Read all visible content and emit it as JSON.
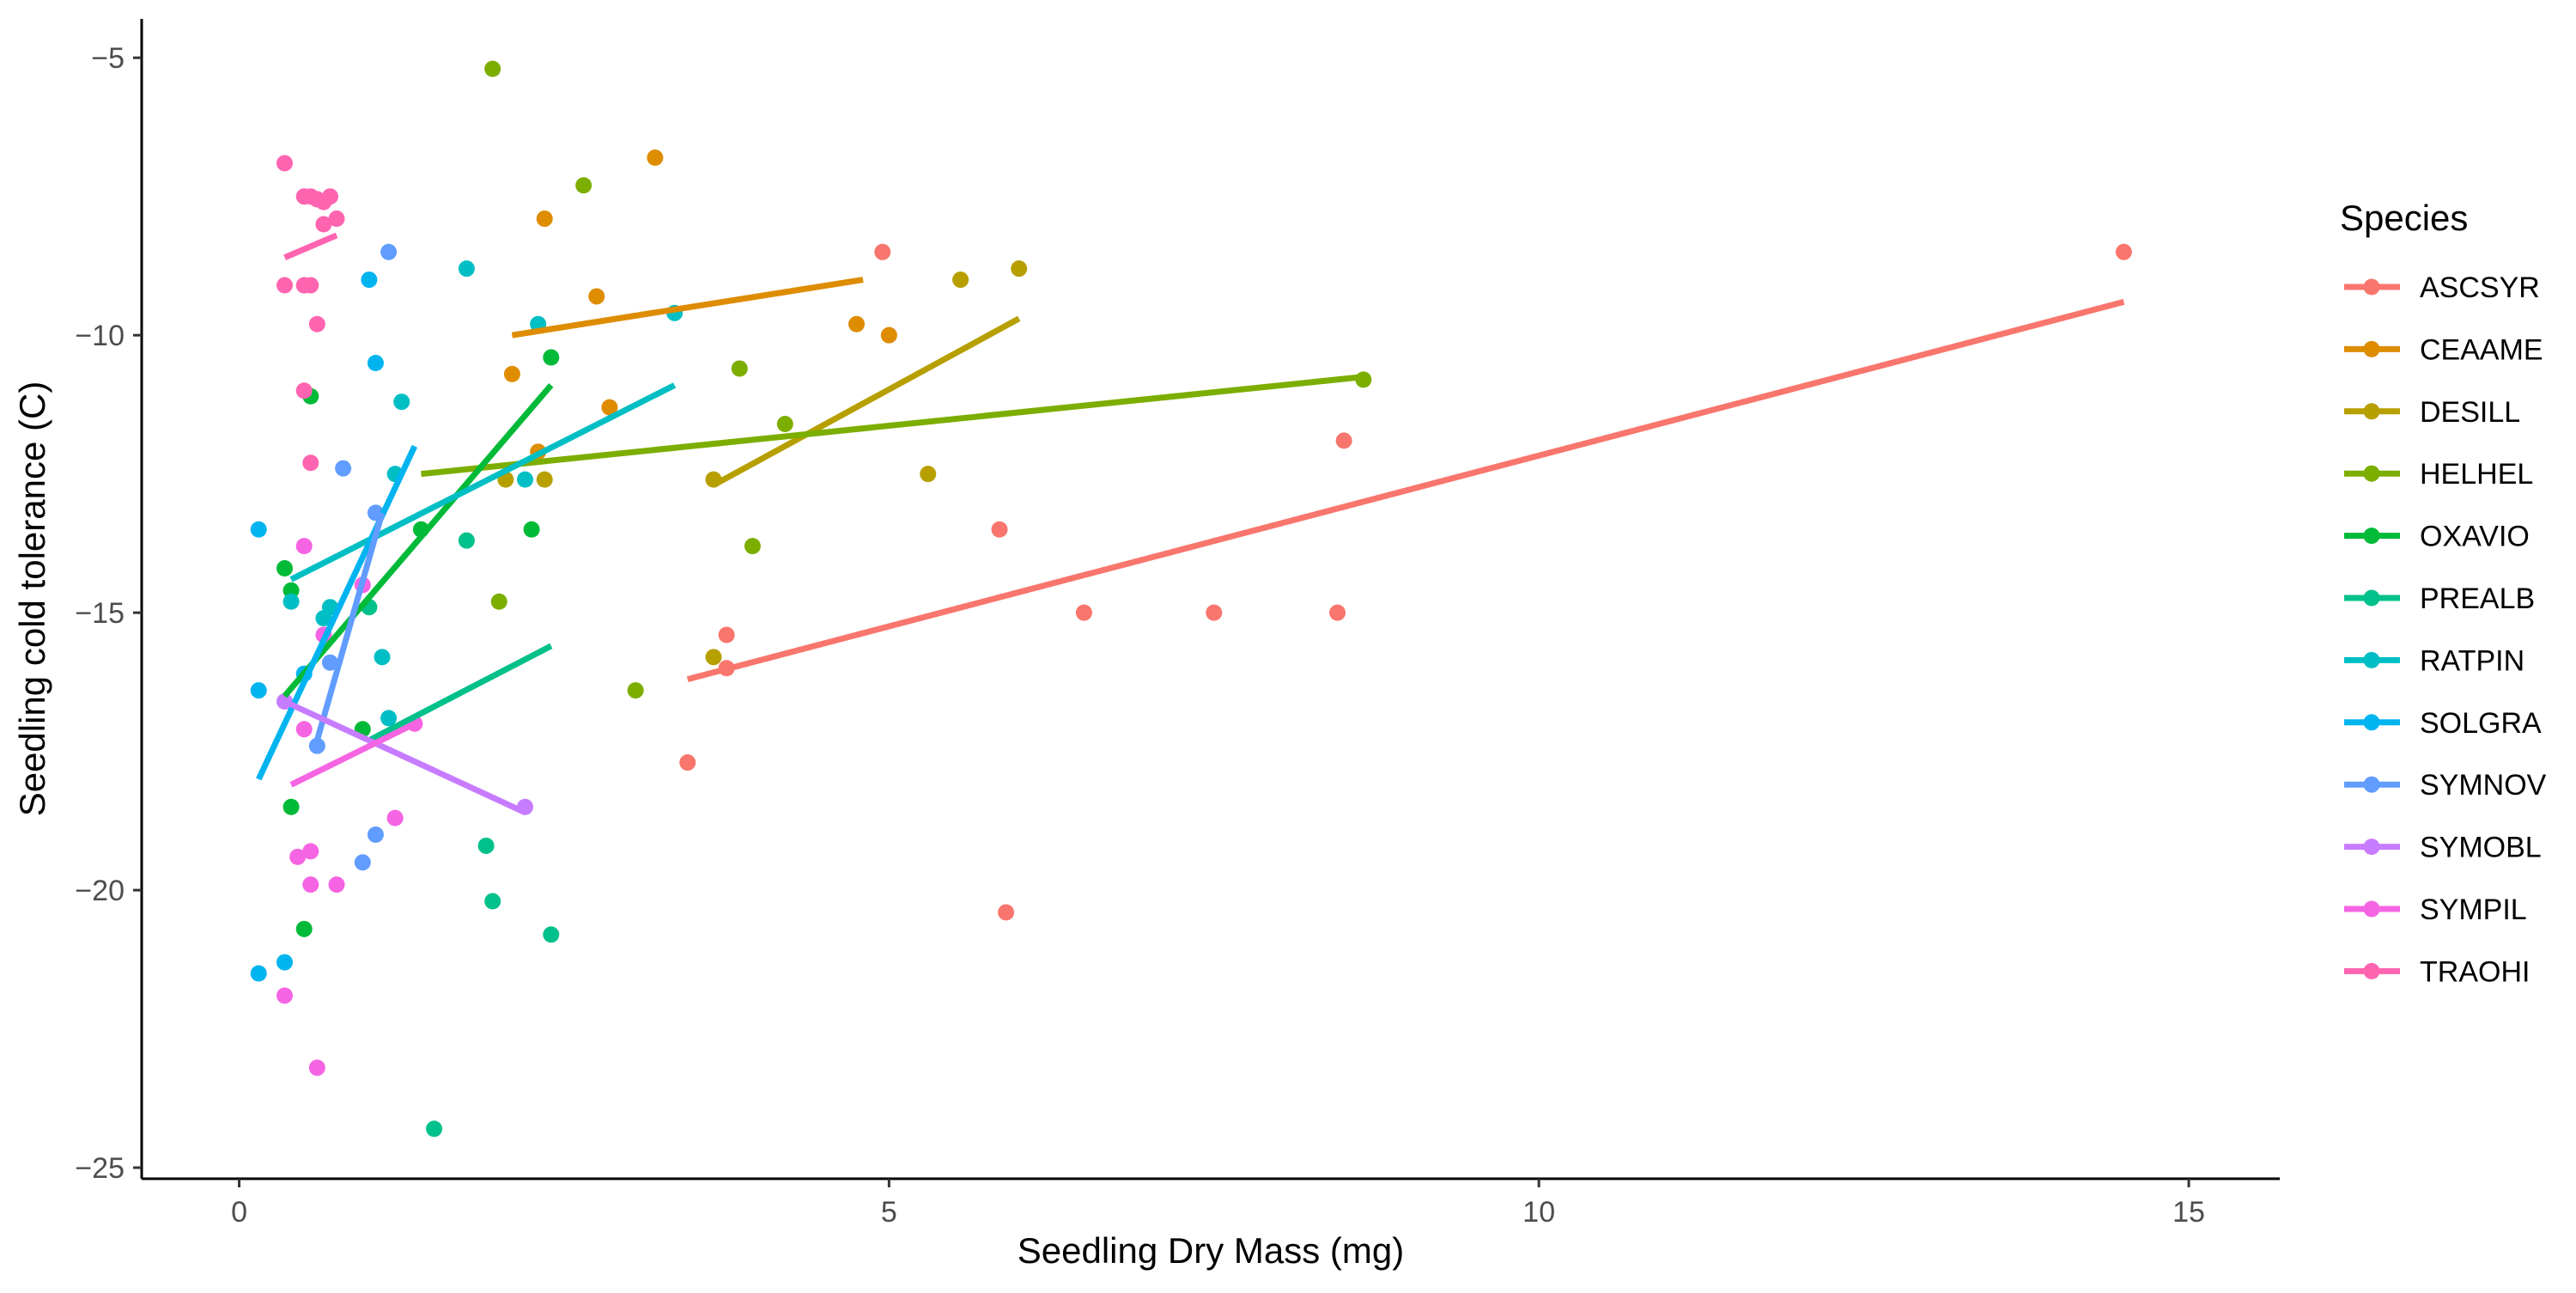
{
  "chart_data": {
    "type": "scatter",
    "xlabel": "Seedling Dry Mass (mg)",
    "ylabel": "Seedling cold tolerance (C)",
    "xlim": [
      -0.75,
      15.7
    ],
    "ylim": [
      -25.2,
      -4.3
    ],
    "x_ticks": [
      0,
      5,
      10,
      15
    ],
    "y_ticks": [
      -25,
      -20,
      -15,
      -10,
      -5
    ],
    "grid": false,
    "legend": {
      "title": "Species",
      "position": "right"
    },
    "series": [
      {
        "name": "ASCSYR",
        "color": "#F8766D",
        "points": [
          [
            4.95,
            -8.5
          ],
          [
            8.5,
            -11.9
          ],
          [
            5.85,
            -13.5
          ],
          [
            6.5,
            -15.0
          ],
          [
            7.5,
            -15.0
          ],
          [
            8.45,
            -15.0
          ],
          [
            3.75,
            -15.4
          ],
          [
            3.75,
            -16.0
          ],
          [
            3.45,
            -17.7
          ],
          [
            5.9,
            -20.4
          ],
          [
            14.5,
            -8.5
          ]
        ],
        "fit": [
          [
            3.45,
            -16.2
          ],
          [
            14.5,
            -9.4
          ]
        ]
      },
      {
        "name": "CEAAME",
        "color": "#DE8C00",
        "points": [
          [
            3.2,
            -6.8
          ],
          [
            2.35,
            -7.9
          ],
          [
            2.75,
            -9.3
          ],
          [
            4.75,
            -9.8
          ],
          [
            5.0,
            -10.0
          ],
          [
            2.1,
            -10.7
          ],
          [
            2.85,
            -11.3
          ],
          [
            2.3,
            -12.1
          ]
        ],
        "fit": [
          [
            2.1,
            -10.0
          ],
          [
            4.8,
            -9.0
          ]
        ]
      },
      {
        "name": "DESILL",
        "color": "#B79F00",
        "points": [
          [
            6.0,
            -8.8
          ],
          [
            5.55,
            -9.0
          ],
          [
            5.3,
            -12.5
          ],
          [
            3.65,
            -12.6
          ],
          [
            3.65,
            -15.8
          ],
          [
            2.35,
            -12.6
          ],
          [
            2.05,
            -12.6
          ]
        ],
        "fit": [
          [
            3.65,
            -12.7
          ],
          [
            6.0,
            -9.7
          ]
        ]
      },
      {
        "name": "HELHEL",
        "color": "#7CAE00",
        "points": [
          [
            1.95,
            -5.2
          ],
          [
            2.65,
            -7.3
          ],
          [
            3.85,
            -10.6
          ],
          [
            4.2,
            -11.6
          ],
          [
            3.95,
            -13.8
          ],
          [
            8.65,
            -10.8
          ],
          [
            3.05,
            -16.4
          ],
          [
            2.0,
            -14.8
          ]
        ],
        "fit": [
          [
            1.4,
            -12.5
          ],
          [
            8.65,
            -10.75
          ]
        ]
      },
      {
        "name": "OXAVIO",
        "color": "#00BA38",
        "points": [
          [
            0.55,
            -11.1
          ],
          [
            2.4,
            -10.4
          ],
          [
            2.25,
            -13.5
          ],
          [
            0.35,
            -14.2
          ],
          [
            0.4,
            -14.6
          ],
          [
            0.95,
            -17.1
          ],
          [
            0.4,
            -18.5
          ],
          [
            0.5,
            -20.7
          ],
          [
            1.4,
            -13.5
          ]
        ],
        "fit": [
          [
            0.35,
            -16.5
          ],
          [
            2.4,
            -10.9
          ]
        ]
      },
      {
        "name": "PREALB",
        "color": "#00C08B",
        "points": [
          [
            1.75,
            -13.7
          ],
          [
            1.0,
            -14.9
          ],
          [
            1.9,
            -19.2
          ],
          [
            1.95,
            -20.2
          ],
          [
            2.4,
            -20.8
          ],
          [
            1.5,
            -24.3
          ]
        ],
        "fit": [
          [
            1.0,
            -17.3
          ],
          [
            2.4,
            -15.6
          ]
        ]
      },
      {
        "name": "RATPIN",
        "color": "#00BFC4",
        "points": [
          [
            1.75,
            -8.8
          ],
          [
            2.3,
            -9.8
          ],
          [
            3.35,
            -9.6
          ],
          [
            1.25,
            -11.2
          ],
          [
            1.2,
            -12.5
          ],
          [
            2.2,
            -12.6
          ],
          [
            0.4,
            -14.8
          ],
          [
            0.65,
            -15.1
          ],
          [
            0.7,
            -14.9
          ],
          [
            1.1,
            -15.8
          ],
          [
            1.15,
            -16.9
          ]
        ],
        "fit": [
          [
            0.4,
            -14.4
          ],
          [
            3.35,
            -10.9
          ]
        ]
      },
      {
        "name": "SOLGRA",
        "color": "#00B4F0",
        "points": [
          [
            1.0,
            -9.0
          ],
          [
            1.05,
            -10.5
          ],
          [
            0.15,
            -13.5
          ],
          [
            0.15,
            -16.4
          ],
          [
            0.5,
            -16.1
          ],
          [
            0.15,
            -21.5
          ],
          [
            0.35,
            -21.3
          ]
        ],
        "fit": [
          [
            0.15,
            -18.0
          ],
          [
            1.35,
            -12.0
          ]
        ]
      },
      {
        "name": "SYMNOV",
        "color": "#619CFF",
        "points": [
          [
            1.15,
            -8.5
          ],
          [
            0.8,
            -12.4
          ],
          [
            1.05,
            -13.2
          ],
          [
            0.7,
            -15.9
          ],
          [
            0.6,
            -17.4
          ],
          [
            1.05,
            -19.0
          ],
          [
            0.95,
            -19.5
          ]
        ],
        "fit": [
          [
            0.6,
            -17.3
          ],
          [
            1.1,
            -13.2
          ]
        ]
      },
      {
        "name": "SYMOBL",
        "color": "#C77CFF",
        "points": [
          [
            0.35,
            -16.6
          ],
          [
            2.2,
            -18.5
          ]
        ],
        "fit": [
          [
            0.35,
            -16.6
          ],
          [
            2.2,
            -18.6
          ]
        ]
      },
      {
        "name": "SYMPIL",
        "color": "#F564E3",
        "points": [
          [
            0.5,
            -13.8
          ],
          [
            0.95,
            -14.5
          ],
          [
            0.65,
            -15.4
          ],
          [
            1.35,
            -17.0
          ],
          [
            0.5,
            -17.1
          ],
          [
            1.2,
            -18.7
          ],
          [
            0.45,
            -19.4
          ],
          [
            0.55,
            -19.3
          ],
          [
            0.55,
            -19.9
          ],
          [
            0.75,
            -19.9
          ],
          [
            0.35,
            -21.9
          ],
          [
            0.6,
            -23.2
          ]
        ],
        "fit": [
          [
            0.4,
            -18.1
          ],
          [
            1.35,
            -17.0
          ]
        ]
      },
      {
        "name": "TRAOHI",
        "color": "#FF64B0",
        "points": [
          [
            0.35,
            -6.9
          ],
          [
            0.5,
            -7.5
          ],
          [
            0.6,
            -7.55
          ],
          [
            0.65,
            -7.6
          ],
          [
            0.7,
            -7.5
          ],
          [
            0.55,
            -7.5
          ],
          [
            0.65,
            -8.0
          ],
          [
            0.75,
            -7.9
          ],
          [
            0.35,
            -9.1
          ],
          [
            0.5,
            -9.1
          ],
          [
            0.55,
            -9.1
          ],
          [
            0.6,
            -9.8
          ],
          [
            0.5,
            -11.0
          ],
          [
            0.55,
            -12.3
          ]
        ],
        "fit": [
          [
            0.35,
            -8.6
          ],
          [
            0.75,
            -8.2
          ]
        ]
      }
    ]
  }
}
